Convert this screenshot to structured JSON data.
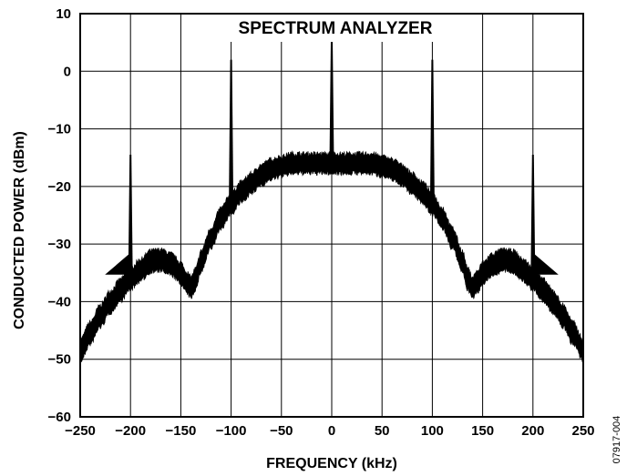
{
  "chart_data": {
    "type": "line",
    "title": "SPECTRUM ANALYZER",
    "xlabel": "FREQUENCY (kHz)",
    "ylabel": "CONDUCTED POWER (dBm)",
    "xlim": [
      -250,
      250
    ],
    "ylim": [
      -60,
      10
    ],
    "xticks": [
      -250,
      -200,
      -150,
      -100,
      -50,
      0,
      50,
      100,
      150,
      200,
      250
    ],
    "yticks": [
      10,
      0,
      -10,
      -20,
      -30,
      -40,
      -50,
      -60
    ],
    "xtick_labels": [
      "−250",
      "−200",
      "−150",
      "−100",
      "−50",
      "0",
      "50",
      "100",
      "150",
      "200",
      "250"
    ],
    "ytick_labels": [
      "10",
      "0",
      "−10",
      "−20",
      "−30",
      "−40",
      "−50",
      "−60"
    ],
    "grid": true,
    "series": [
      {
        "x": [
          -250,
          -240,
          -230,
          -220,
          -210,
          -200,
          -190,
          -180,
          -170,
          -160,
          -150,
          -145,
          -140,
          -135,
          -130,
          -120,
          -110,
          -100,
          -90,
          -80,
          -70,
          -60,
          -50,
          -40,
          -30,
          -20,
          -10,
          0,
          10,
          20,
          30,
          40,
          50,
          60,
          70,
          80,
          90,
          100,
          110,
          120,
          130,
          135,
          140,
          145,
          150,
          160,
          170,
          180,
          190,
          200,
          210,
          220,
          230,
          240,
          250
        ],
        "y": [
          -48.5,
          -45.5,
          -42.5,
          -40,
          -38,
          -36,
          -34.5,
          -33,
          -32.8,
          -33.5,
          -35,
          -36.5,
          -37.5,
          -36,
          -33,
          -29,
          -25.5,
          -23,
          -21,
          -19.5,
          -18,
          -17,
          -16.5,
          -16,
          -16,
          -16,
          -16,
          -16,
          -16,
          -16,
          -16,
          -16,
          -16.5,
          -17,
          -18,
          -19.5,
          -21,
          -23,
          -25.5,
          -29,
          -33,
          -36,
          -37.5,
          -36.5,
          -35,
          -33.5,
          -32.8,
          -33,
          -34.5,
          -36,
          -38,
          -40,
          -42.5,
          -45.5,
          -48.5
        ]
      }
    ],
    "spurs": [
      {
        "x": -200,
        "peak": -14.5
      },
      {
        "x": -100,
        "peak": 2
      },
      {
        "x": 0,
        "peak": 5.5
      },
      {
        "x": 100,
        "peak": 2
      },
      {
        "x": 200,
        "peak": -14.5
      }
    ],
    "markers": [
      {
        "x": -200,
        "y": -35,
        "direction": "left"
      },
      {
        "x": 200,
        "y": -35,
        "direction": "right"
      }
    ],
    "figure_id": "07917-004"
  }
}
